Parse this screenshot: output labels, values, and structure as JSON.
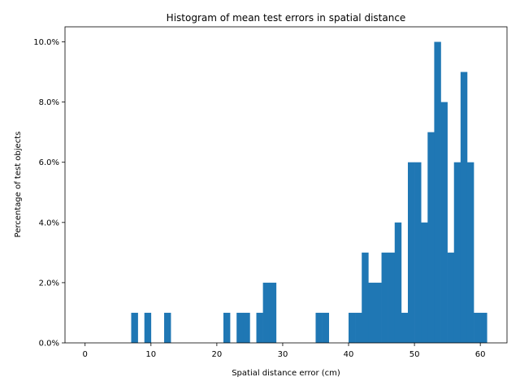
{
  "chart_data": {
    "type": "bar",
    "title": "Histogram of mean test errors in spatial distance",
    "xlabel": "Spatial distance error (cm)",
    "ylabel": "Percentage of test objects",
    "xlim": [
      -3.05,
      64.05
    ],
    "ylim": [
      0,
      10.5
    ],
    "x_ticks": [
      {
        "value": 0,
        "label": "0"
      },
      {
        "value": 10,
        "label": "10"
      },
      {
        "value": 20,
        "label": "20"
      },
      {
        "value": 30,
        "label": "30"
      },
      {
        "value": 40,
        "label": "40"
      },
      {
        "value": 50,
        "label": "50"
      },
      {
        "value": 60,
        "label": "60"
      }
    ],
    "y_ticks": [
      {
        "value": 0,
        "label": "0.0%"
      },
      {
        "value": 2,
        "label": "2.0%"
      },
      {
        "value": 4,
        "label": "4.0%"
      },
      {
        "value": 6,
        "label": "6.0%"
      },
      {
        "value": 8,
        "label": "8.0%"
      },
      {
        "value": 10,
        "label": "10.0%"
      }
    ],
    "bar_color": "#1f77b4",
    "bin_edges": [
      0,
      1,
      2,
      3,
      4,
      5,
      6,
      7,
      8,
      9,
      10,
      11,
      12,
      13,
      14,
      15,
      16,
      17,
      18,
      19,
      20,
      21,
      22,
      23,
      24,
      25,
      26,
      27,
      28,
      29,
      30,
      31,
      32,
      33,
      34,
      35,
      36,
      37,
      38,
      39,
      40,
      41,
      42,
      43,
      44,
      45,
      46,
      47,
      48,
      49,
      50,
      51,
      52,
      53,
      54,
      55,
      56,
      57,
      58,
      59,
      60,
      61
    ],
    "values": [
      0,
      0,
      0,
      0,
      0,
      0,
      0,
      1,
      0,
      1,
      0,
      0,
      1,
      0,
      0,
      0,
      0,
      0,
      0,
      0,
      0,
      1,
      0,
      1,
      1,
      0,
      1,
      2,
      2,
      0,
      0,
      0,
      0,
      0,
      0,
      1,
      1,
      0,
      0,
      0,
      1,
      1,
      3,
      2,
      2,
      3,
      3,
      4,
      1,
      6,
      6,
      4,
      7,
      10,
      8,
      3,
      6,
      9,
      6,
      1,
      1
    ],
    "grid": false
  }
}
